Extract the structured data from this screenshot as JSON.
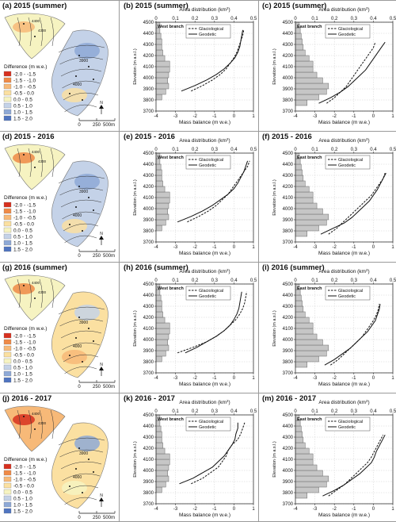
{
  "labels": {
    "area_axis": "Area distribution (km",
    "area_unit_sup": "2",
    "mass_axis": "Mass balance (m w.e.)",
    "elev_axis": "Elevation (m a.s.l.)",
    "legend_glacio": "Glaciological",
    "legend_geo": "Geodetic",
    "west": "West branch",
    "east": "East branch",
    "diff_title": "Difference (m w.e.)",
    "scale_0": "0",
    "scale_mid": "250",
    "scale_end": "500m",
    "north": "N"
  },
  "diff_legend": {
    "labels": [
      "-2.0 - -1.5",
      "-1.5 - -1.0",
      "-1.0 - -0.5",
      "-0.5 - 0.0",
      "0.0 - 0.5",
      "0.5 - 1.0",
      "1.0 - 1.5",
      "1.5 - 2.0"
    ],
    "colors": [
      "#d7301f",
      "#ef8a47",
      "#f7b978",
      "#fbe0a1",
      "#f6f3c1",
      "#c4d2e8",
      "#8ea9d6",
      "#4f74c0"
    ]
  },
  "map_contours": [
    "3900",
    "4000",
    "4100",
    "4200",
    "4300",
    "4400"
  ],
  "rows": [
    {
      "map": {
        "title": "(a) 2015 (summer)",
        "colors": [
          "#f6f3c1",
          "#c4d2e8",
          "#f7b978",
          "#8ea9d6",
          "#fbe0a1"
        ]
      },
      "west": {
        "title": "(b) 2015 (summer)"
      },
      "east": {
        "title": "(c) 2015 (summer)"
      }
    },
    {
      "map": {
        "title": "(d) 2015 - 2016",
        "colors": [
          "#f6f3c1",
          "#c4d2e8",
          "#ef8a47",
          "#8ea9d6",
          "#fbe0a1"
        ]
      },
      "west": {
        "title": "(e) 2015 - 2016"
      },
      "east": {
        "title": "(f) 2015 - 2016"
      }
    },
    {
      "map": {
        "title": "(g) 2016 (summer)",
        "colors": [
          "#f6f3c1",
          "#fbe0a1",
          "#ef8a47",
          "#c4d2e8",
          "#f7b978"
        ]
      },
      "west": {
        "title": "(h) 2016 (summer)"
      },
      "east": {
        "title": "(i) 2016 (summer)"
      }
    },
    {
      "map": {
        "title": "(j) 2016 - 2017",
        "colors": [
          "#f7b978",
          "#fbe0a1",
          "#d7301f",
          "#8ea9d6",
          "#f6f3c1"
        ]
      },
      "west": {
        "title": "(k) 2016 - 2017"
      },
      "east": {
        "title": "(m) 2016 - 2017"
      }
    }
  ],
  "chart_data": [
    {
      "type": "line",
      "panel": "(b)",
      "branch": "West branch",
      "xlim": [
        -4,
        1
      ],
      "ylim": [
        3700,
        4500
      ],
      "area_lim": [
        0,
        0.5
      ],
      "elev": [
        3800,
        3850,
        3900,
        3950,
        4000,
        4050,
        4100,
        4150,
        4200,
        4250,
        4300,
        4350,
        4400,
        4450
      ],
      "area": [
        0.03,
        0.05,
        0.065,
        0.06,
        0.065,
        0.07,
        0.07,
        0.045,
        0.035,
        0.03,
        0.03,
        0.025,
        0.02,
        0.02
      ],
      "series": [
        {
          "name": "Glaciological",
          "style": "solid",
          "x": [
            -2.7,
            -2.0,
            -1.4,
            -0.9,
            -0.5,
            -0.2,
            0.05,
            0.2,
            0.3,
            0.35,
            0.4,
            0.45
          ],
          "y": [
            3880,
            3930,
            3980,
            4030,
            4080,
            4130,
            4180,
            4230,
            4280,
            4330,
            4380,
            4430
          ]
        },
        {
          "name": "Geodetic",
          "style": "dashed",
          "x": [
            -2.2,
            -1.6,
            -1.1,
            -0.7,
            -0.4,
            -0.2,
            0.0,
            0.15,
            0.25,
            0.35,
            0.45,
            0.5
          ],
          "y": [
            3880,
            3930,
            3980,
            4030,
            4080,
            4130,
            4180,
            4230,
            4280,
            4330,
            4380,
            4430
          ]
        }
      ]
    },
    {
      "type": "line",
      "panel": "(c)",
      "branch": "East branch",
      "xlim": [
        -4,
        1
      ],
      "ylim": [
        3700,
        4500
      ],
      "area_lim": [
        0,
        0.5
      ],
      "elev": [
        3750,
        3800,
        3850,
        3900,
        3950,
        4000,
        4050,
        4100,
        4150,
        4200,
        4250,
        4300,
        4350,
        4400,
        4450
      ],
      "area": [
        0.06,
        0.12,
        0.16,
        0.17,
        0.14,
        0.11,
        0.09,
        0.09,
        0.07,
        0.05,
        0.04,
        0.035,
        0.03,
        0.025,
        0.02
      ],
      "series": [
        {
          "name": "Glaciological",
          "style": "solid",
          "x": [
            -2.8,
            -2.2,
            -1.7,
            -1.3,
            -1.0,
            -0.7,
            -0.4,
            -0.2,
            0.0,
            0.2,
            0.4,
            0.6
          ],
          "y": [
            3770,
            3820,
            3870,
            3920,
            3970,
            4020,
            4070,
            4120,
            4170,
            4220,
            4270,
            4320
          ]
        },
        {
          "name": "Geodetic",
          "style": "dashed",
          "x": [
            -2.4,
            -2.0,
            -1.7,
            -1.4,
            -1.2,
            -1.0,
            -0.8,
            -0.6,
            -0.4,
            -0.2,
            0.0,
            0.1
          ],
          "y": [
            3770,
            3820,
            3870,
            3920,
            3970,
            4020,
            4070,
            4120,
            4170,
            4220,
            4270,
            4320
          ]
        }
      ]
    },
    {
      "type": "line",
      "panel": "(e)",
      "branch": "West branch",
      "xlim": [
        -4,
        1
      ],
      "ylim": [
        3700,
        4500
      ],
      "area_lim": [
        0,
        0.5
      ],
      "elev": [
        3800,
        3850,
        3900,
        3950,
        4000,
        4050,
        4100,
        4150,
        4200,
        4250,
        4300,
        4350,
        4400,
        4450
      ],
      "area": [
        0.03,
        0.05,
        0.065,
        0.06,
        0.065,
        0.07,
        0.07,
        0.045,
        0.035,
        0.03,
        0.03,
        0.025,
        0.02,
        0.02
      ],
      "series": [
        {
          "name": "Glaciological",
          "style": "solid",
          "x": [
            -2.9,
            -2.2,
            -1.6,
            -1.1,
            -0.7,
            -0.3,
            0.0,
            0.2,
            0.35,
            0.5,
            0.6,
            0.7
          ],
          "y": [
            3880,
            3930,
            3980,
            4030,
            4080,
            4130,
            4180,
            4230,
            4280,
            4330,
            4380,
            4430
          ]
        },
        {
          "name": "Geodetic",
          "style": "dashed",
          "x": [
            -2.4,
            -1.8,
            -1.3,
            -0.9,
            -0.6,
            -0.3,
            -0.1,
            0.1,
            0.3,
            0.5,
            0.7,
            0.8
          ],
          "y": [
            3880,
            3930,
            3980,
            4030,
            4080,
            4130,
            4180,
            4230,
            4280,
            4330,
            4380,
            4430
          ]
        }
      ]
    },
    {
      "type": "line",
      "panel": "(f)",
      "branch": "East branch",
      "xlim": [
        -4,
        1
      ],
      "ylim": [
        3700,
        4500
      ],
      "area_lim": [
        0,
        0.5
      ],
      "elev": [
        3750,
        3800,
        3850,
        3900,
        3950,
        4000,
        4050,
        4100,
        4150,
        4200,
        4250,
        4300,
        4350,
        4400,
        4450
      ],
      "area": [
        0.06,
        0.12,
        0.16,
        0.17,
        0.14,
        0.11,
        0.09,
        0.09,
        0.07,
        0.05,
        0.04,
        0.035,
        0.03,
        0.025,
        0.02
      ],
      "series": [
        {
          "name": "Glaciological",
          "style": "solid",
          "x": [
            -2.7,
            -2.1,
            -1.5,
            -1.1,
            -0.8,
            -0.5,
            -0.2,
            0.0,
            0.2,
            0.35,
            0.5,
            0.65
          ],
          "y": [
            3770,
            3820,
            3870,
            3920,
            3970,
            4020,
            4070,
            4120,
            4170,
            4220,
            4270,
            4320
          ]
        },
        {
          "name": "Geodetic",
          "style": "dashed",
          "x": [
            -2.3,
            -1.9,
            -1.6,
            -1.3,
            -1.0,
            -0.7,
            -0.4,
            -0.1,
            0.1,
            0.3,
            0.5,
            0.6
          ],
          "y": [
            3770,
            3820,
            3870,
            3920,
            3970,
            4020,
            4070,
            4120,
            4170,
            4220,
            4270,
            4320
          ]
        }
      ]
    },
    {
      "type": "line",
      "panel": "(h)",
      "branch": "West branch",
      "xlim": [
        -4,
        1
      ],
      "ylim": [
        3700,
        4500
      ],
      "area_lim": [
        0,
        0.5
      ],
      "elev": [
        3800,
        3850,
        3900,
        3950,
        4000,
        4050,
        4100,
        4150,
        4200,
        4250,
        4300,
        4350,
        4400,
        4450
      ],
      "area": [
        0.03,
        0.05,
        0.065,
        0.06,
        0.065,
        0.07,
        0.07,
        0.045,
        0.035,
        0.03,
        0.03,
        0.025,
        0.02,
        0.02
      ],
      "series": [
        {
          "name": "Glaciological",
          "style": "solid",
          "x": [
            -2.5,
            -1.9,
            -1.4,
            -0.9,
            -0.5,
            -0.2,
            0.0,
            0.15,
            0.25,
            0.3,
            0.35,
            0.4
          ],
          "y": [
            3880,
            3930,
            3980,
            4030,
            4080,
            4130,
            4180,
            4230,
            4280,
            4330,
            4380,
            4430
          ]
        },
        {
          "name": "Geodetic",
          "style": "dashed",
          "x": [
            -2.9,
            -2.1,
            -1.4,
            -0.9,
            -0.5,
            -0.2,
            0.1,
            0.3,
            0.45,
            0.55,
            0.6,
            0.65
          ],
          "y": [
            3880,
            3930,
            3980,
            4030,
            4080,
            4130,
            4180,
            4230,
            4280,
            4330,
            4380,
            4430
          ]
        }
      ]
    },
    {
      "type": "line",
      "panel": "(i)",
      "branch": "East branch",
      "xlim": [
        -4,
        1
      ],
      "ylim": [
        3700,
        4500
      ],
      "area_lim": [
        0,
        0.5
      ],
      "elev": [
        3750,
        3800,
        3850,
        3900,
        3950,
        4000,
        4050,
        4100,
        4150,
        4200,
        4250,
        4300,
        4350,
        4400,
        4450
      ],
      "area": [
        0.06,
        0.12,
        0.16,
        0.17,
        0.14,
        0.11,
        0.09,
        0.09,
        0.07,
        0.05,
        0.04,
        0.035,
        0.03,
        0.025,
        0.02
      ],
      "series": [
        {
          "name": "Glaciological",
          "style": "solid",
          "x": [
            -2.5,
            -2.0,
            -1.6,
            -1.2,
            -0.9,
            -0.6,
            -0.3,
            -0.1,
            0.1,
            0.2,
            0.3,
            0.35
          ],
          "y": [
            3770,
            3820,
            3870,
            3920,
            3970,
            4020,
            4070,
            4120,
            4170,
            4220,
            4270,
            4320
          ]
        },
        {
          "name": "Geodetic",
          "style": "dashed",
          "x": [
            -2.2,
            -1.8,
            -1.5,
            -1.2,
            -0.9,
            -0.6,
            -0.4,
            -0.2,
            0.0,
            0.15,
            0.25,
            0.3
          ],
          "y": [
            3770,
            3820,
            3870,
            3920,
            3970,
            4020,
            4070,
            4120,
            4170,
            4220,
            4270,
            4320
          ]
        }
      ]
    },
    {
      "type": "line",
      "panel": "(k)",
      "branch": "West branch",
      "xlim": [
        -4,
        1
      ],
      "ylim": [
        3700,
        4500
      ],
      "area_lim": [
        0,
        0.5
      ],
      "elev": [
        3800,
        3850,
        3900,
        3950,
        4000,
        4050,
        4100,
        4150,
        4200,
        4250,
        4300,
        4350,
        4400,
        4450
      ],
      "area": [
        0.03,
        0.05,
        0.065,
        0.06,
        0.065,
        0.07,
        0.07,
        0.045,
        0.035,
        0.03,
        0.03,
        0.025,
        0.02,
        0.02
      ],
      "series": [
        {
          "name": "Glaciological",
          "style": "solid",
          "x": [
            -2.8,
            -2.1,
            -1.6,
            -1.1,
            -0.8,
            -0.5,
            -0.3,
            -0.1,
            0.05,
            0.1,
            0.2,
            0.2
          ],
          "y": [
            3880,
            3930,
            3980,
            4030,
            4080,
            4130,
            4180,
            4230,
            4280,
            4330,
            4380,
            4430
          ]
        },
        {
          "name": "Geodetic",
          "style": "dashed",
          "x": [
            -2.2,
            -1.6,
            -1.2,
            -0.8,
            -0.6,
            -0.4,
            -0.3,
            -0.1,
            0.2,
            0.35,
            0.45,
            0.55
          ],
          "y": [
            3880,
            3930,
            3980,
            4030,
            4080,
            4130,
            4180,
            4230,
            4280,
            4330,
            4380,
            4430
          ]
        }
      ]
    },
    {
      "type": "line",
      "panel": "(m)",
      "branch": "East branch",
      "xlim": [
        -4,
        1
      ],
      "ylim": [
        3700,
        4500
      ],
      "area_lim": [
        0,
        0.5
      ],
      "elev": [
        3750,
        3800,
        3850,
        3900,
        3950,
        4000,
        4050,
        4100,
        4150,
        4200,
        4250,
        4300,
        4350,
        4400,
        4450
      ],
      "area": [
        0.06,
        0.12,
        0.16,
        0.17,
        0.14,
        0.11,
        0.09,
        0.09,
        0.07,
        0.05,
        0.04,
        0.035,
        0.03,
        0.025,
        0.02
      ],
      "series": [
        {
          "name": "Glaciological",
          "style": "solid",
          "x": [
            -2.6,
            -2.0,
            -1.5,
            -1.1,
            -0.7,
            -0.4,
            -0.1,
            0.05,
            0.15,
            0.3,
            0.45,
            0.6
          ],
          "y": [
            3770,
            3820,
            3870,
            3920,
            3970,
            4020,
            4070,
            4120,
            4170,
            4220,
            4270,
            4320
          ]
        },
        {
          "name": "Geodetic",
          "style": "dashed",
          "x": [
            -2.3,
            -1.9,
            -1.5,
            -1.2,
            -0.9,
            -0.6,
            -0.3,
            -0.1,
            0.05,
            0.2,
            0.35,
            0.5
          ],
          "y": [
            3770,
            3820,
            3870,
            3920,
            3970,
            4020,
            4070,
            4120,
            4170,
            4220,
            4270,
            4320
          ]
        }
      ]
    }
  ]
}
